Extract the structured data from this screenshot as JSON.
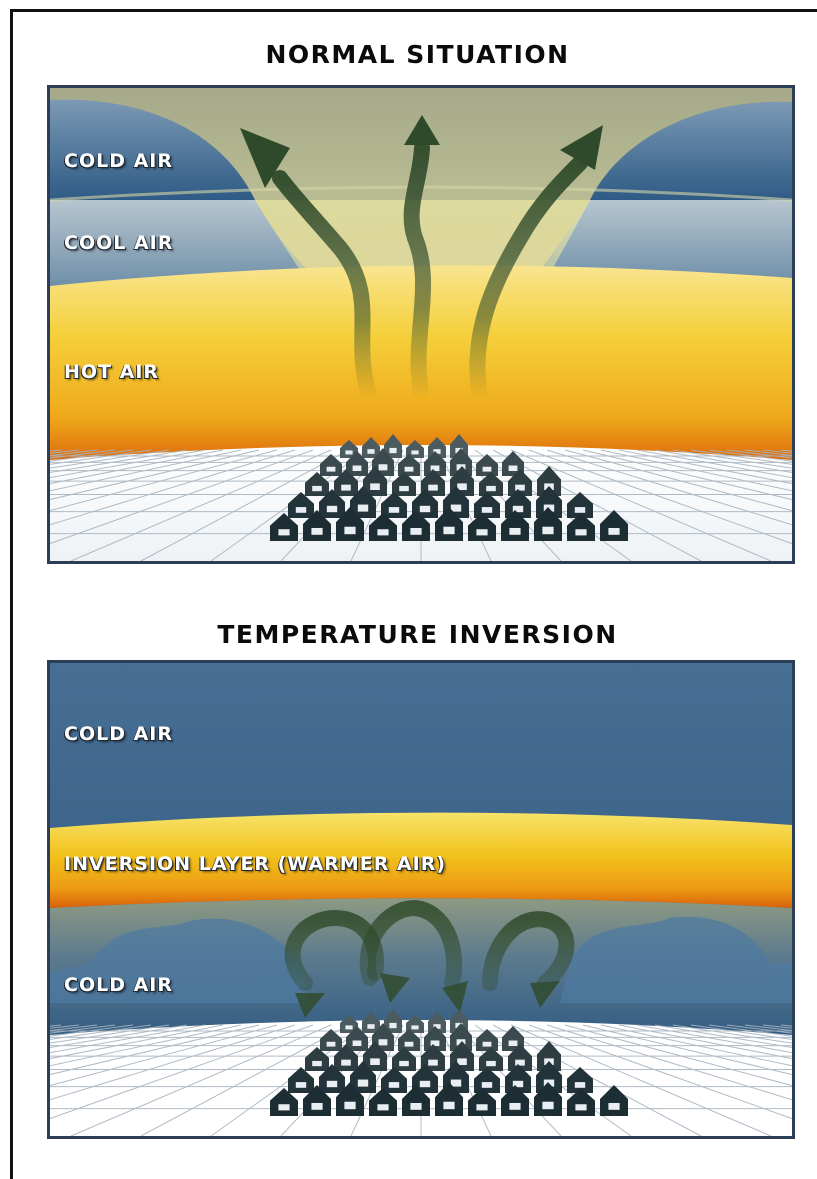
{
  "normal": {
    "title": "NORMAL SITUATION",
    "layers": {
      "cold": "COLD AIR",
      "cool": "COOL AIR",
      "hot": "HOT AIR"
    }
  },
  "inversion": {
    "title": "TEMPERATURE INVERSION",
    "layers": {
      "cold_top": "COLD AIR",
      "inversion": "INVERSION LAYER (WARMER AIR)",
      "cold_bottom": "COLD AIR"
    }
  },
  "colors": {
    "cold": "#3d6690",
    "cool": "#a9bcc8",
    "warm": "#f2c01e",
    "hot_edge": "#d9670c",
    "arrow": "#2f4a2a",
    "ground_grid": "#a8b4c0",
    "buildings": "#1c2e33"
  },
  "icons": [
    "rising-air-arrow-icon",
    "trapped-air-arrow-icon",
    "city-buildings-icon"
  ]
}
